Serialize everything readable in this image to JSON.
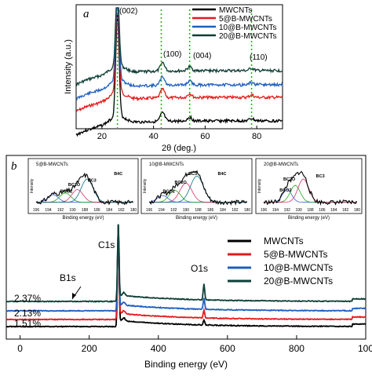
{
  "panel_a": {
    "label": "a",
    "xlabel": "2θ (deg.)",
    "ylabel": "Intensity (a.u.)",
    "xticks": [
      "20",
      "40",
      "60",
      "80"
    ],
    "peaks": [
      "(002)",
      "(100)",
      "(004)",
      "(110)"
    ],
    "legend": [
      "MWCNTs",
      "5@B-MWCNTs",
      "10@B-MWCNTs",
      "20@B-MWCNTs"
    ]
  },
  "panel_b": {
    "label": "b",
    "xlabel": "Binding energy (eV)",
    "xticks": [
      "0",
      "200",
      "400",
      "600",
      "800",
      "100"
    ],
    "labels": {
      "c1s": "C1s",
      "o1s": "O1s",
      "b1s": "B1s"
    },
    "percentages": [
      "2.37%",
      "2.13%",
      "1.51%"
    ],
    "legend": [
      "MWCNTs",
      "5@B-MWCNTs",
      "10@B-MWCNTs",
      "20@B-MWCNTs"
    ]
  },
  "insets": [
    {
      "title": "5@B-MWCNTs",
      "ylabel": "Intensity",
      "xlabel": "Binding energy (eV)",
      "xticks": [
        "196",
        "194",
        "192",
        "190",
        "188",
        "186",
        "184",
        "182",
        "180"
      ],
      "peak_labels": [
        "BCO2",
        "BC2O",
        "BC3",
        "B4C"
      ]
    },
    {
      "title": "10@B-MWCNTs",
      "ylabel": "Intensity",
      "xlabel": "Binding energy (eV)",
      "xticks": [
        "196",
        "194",
        "192",
        "190",
        "188",
        "186",
        "184",
        "182",
        "180"
      ],
      "peak_labels": [
        "BCO2",
        "BC2O",
        "BC3",
        "B4C"
      ]
    },
    {
      "title": "20@B-MWCNTs",
      "ylabel": "Intensity",
      "xlabel": "Binding energy (eV)",
      "xticks": [
        "196",
        "194",
        "192",
        "190",
        "188",
        "186",
        "184",
        "182",
        "180"
      ],
      "peak_labels": [
        "BC2O",
        "BCO2",
        "BC3"
      ]
    }
  ],
  "colors": {
    "mwcnt": "#000000",
    "b5": "#e41a1c",
    "b10": "#1f5fbf",
    "b20": "#0d3f36",
    "fit": "#22aa22"
  },
  "chart_data": [
    {
      "type": "line",
      "title": "",
      "xlabel": "2θ (deg.)",
      "ylabel": "Intensity (a.u.)",
      "xlim": [
        10,
        90
      ],
      "peaks_2theta": [
        26,
        43,
        54,
        78
      ],
      "series": [
        {
          "name": "MWCNTs",
          "color": "#000000"
        },
        {
          "name": "5@B-MWCNTs",
          "color": "#e41a1c"
        },
        {
          "name": "10@B-MWCNTs",
          "color": "#1f5fbf"
        },
        {
          "name": "20@B-MWCNTs",
          "color": "#0d3f36"
        }
      ]
    },
    {
      "type": "line",
      "xlabel": "Binding energy (eV)",
      "xlim": [
        0,
        1000
      ],
      "peaks_eV": {
        "B1s": 190,
        "C1s": 284,
        "O1s": 532
      },
      "boron_content": [
        "1.51%",
        "2.13%",
        "2.37%"
      ],
      "series": [
        {
          "name": "MWCNTs",
          "color": "#000000"
        },
        {
          "name": "5@B-MWCNTs",
          "color": "#e41a1c"
        },
        {
          "name": "10@B-MWCNTs",
          "color": "#1f5fbf"
        },
        {
          "name": "20@B-MWCNTs",
          "color": "#0d3f36"
        }
      ]
    }
  ]
}
